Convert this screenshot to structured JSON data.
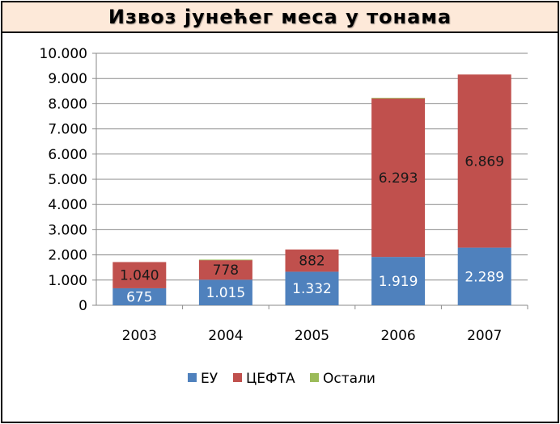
{
  "title": "Извоз јунећег меса  у тонама",
  "chart_data": {
    "type": "bar",
    "stacked": true,
    "categories": [
      "2003",
      "2004",
      "2005",
      "2006",
      "2007"
    ],
    "series": [
      {
        "name": "ЕУ",
        "color": "#4f81bd",
        "values": [
          675,
          1015,
          1332,
          1919,
          2289
        ],
        "labels": [
          "675",
          "1.015",
          "1.332",
          "1.919",
          "2.289"
        ]
      },
      {
        "name": "ЦЕФТА",
        "color": "#c0504d",
        "values": [
          1040,
          778,
          882,
          6293,
          6869
        ],
        "labels": [
          "1.040",
          "778",
          "882",
          "6.293",
          "6.869"
        ]
      },
      {
        "name": "Остали",
        "color": "#9bbb59",
        "values": [
          0,
          20,
          0,
          20,
          0
        ],
        "labels": [
          "",
          "",
          "",
          "",
          ""
        ]
      }
    ],
    "ylim": [
      0,
      10000
    ],
    "yticks": [
      0,
      1000,
      2000,
      3000,
      4000,
      5000,
      6000,
      7000,
      8000,
      9000,
      10000
    ],
    "ytick_labels": [
      "0",
      "1.000",
      "2.000",
      "3.000",
      "4.000",
      "5.000",
      "6.000",
      "7.000",
      "8.000",
      "9.000",
      "10.000"
    ],
    "grid": true,
    "legend_position": "bottom"
  }
}
